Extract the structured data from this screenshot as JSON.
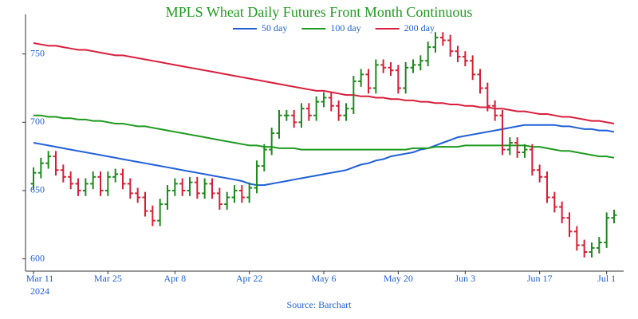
{
  "chart_data": {
    "type": "ohlc",
    "title": "MPLS Wheat Daily Futures Front Month Continuous",
    "source": "Source: Barchart",
    "x": [
      "2024-03-11",
      "2024-03-12",
      "2024-03-13",
      "2024-03-14",
      "2024-03-15",
      "2024-03-18",
      "2024-03-19",
      "2024-03-20",
      "2024-03-21",
      "2024-03-22",
      "2024-03-25",
      "2024-03-26",
      "2024-03-27",
      "2024-03-28",
      "2024-04-01",
      "2024-04-02",
      "2024-04-03",
      "2024-04-04",
      "2024-04-05",
      "2024-04-08",
      "2024-04-09",
      "2024-04-10",
      "2024-04-11",
      "2024-04-12",
      "2024-04-15",
      "2024-04-16",
      "2024-04-17",
      "2024-04-18",
      "2024-04-19",
      "2024-04-22",
      "2024-04-23",
      "2024-04-24",
      "2024-04-25",
      "2024-04-26",
      "2024-04-29",
      "2024-04-30",
      "2024-05-01",
      "2024-05-02",
      "2024-05-03",
      "2024-05-06",
      "2024-05-07",
      "2024-05-08",
      "2024-05-09",
      "2024-05-10",
      "2024-05-13",
      "2024-05-14",
      "2024-05-15",
      "2024-05-16",
      "2024-05-17",
      "2024-05-20",
      "2024-05-21",
      "2024-05-22",
      "2024-05-23",
      "2024-05-24",
      "2024-05-28",
      "2024-05-29",
      "2024-05-30",
      "2024-05-31",
      "2024-06-03",
      "2024-06-04",
      "2024-06-05",
      "2024-06-06",
      "2024-06-07",
      "2024-06-10",
      "2024-06-11",
      "2024-06-12",
      "2024-06-13",
      "2024-06-14",
      "2024-06-17",
      "2024-06-18",
      "2024-06-20",
      "2024-06-21",
      "2024-06-24",
      "2024-06-25",
      "2024-06-26",
      "2024-06-27",
      "2024-06-28",
      "2024-07-01",
      "2024-07-02"
    ],
    "ohlc": {
      "open": [
        655,
        663,
        670,
        675,
        665,
        660,
        655,
        650,
        655,
        660,
        650,
        660,
        662,
        655,
        648,
        645,
        635,
        628,
        640,
        650,
        655,
        650,
        656,
        648,
        655,
        648,
        640,
        645,
        650,
        645,
        652,
        668,
        680,
        692,
        705,
        705,
        700,
        710,
        705,
        715,
        718,
        712,
        705,
        710,
        730,
        735,
        725,
        742,
        740,
        738,
        725,
        740,
        742,
        745,
        755,
        762,
        760,
        752,
        748,
        745,
        735,
        725,
        712,
        705,
        680,
        685,
        678,
        680,
        665,
        660,
        645,
        638,
        630,
        620,
        610,
        605,
        608,
        612,
        630
      ],
      "high": [
        667,
        674,
        679,
        679,
        669,
        664,
        659,
        659,
        664,
        664,
        664,
        666,
        666,
        659,
        652,
        649,
        639,
        644,
        654,
        659,
        659,
        660,
        660,
        659,
        659,
        652,
        649,
        654,
        654,
        656,
        672,
        684,
        696,
        709,
        709,
        709,
        714,
        714,
        719,
        722,
        722,
        716,
        714,
        734,
        739,
        739,
        746,
        746,
        744,
        742,
        744,
        746,
        749,
        759,
        766,
        766,
        764,
        756,
        752,
        749,
        739,
        729,
        716,
        709,
        689,
        689,
        684,
        684,
        669,
        664,
        649,
        642,
        634,
        624,
        614,
        612,
        616,
        634,
        636
      ],
      "low": [
        651,
        659,
        666,
        661,
        656,
        651,
        646,
        646,
        651,
        646,
        646,
        656,
        651,
        644,
        641,
        631,
        624,
        624,
        636,
        646,
        646,
        646,
        644,
        644,
        644,
        636,
        636,
        641,
        641,
        641,
        648,
        664,
        676,
        688,
        701,
        696,
        696,
        701,
        701,
        711,
        708,
        701,
        701,
        706,
        726,
        721,
        721,
        736,
        734,
        721,
        721,
        736,
        738,
        741,
        751,
        756,
        748,
        744,
        741,
        731,
        721,
        708,
        701,
        676,
        676,
        674,
        674,
        661,
        656,
        641,
        634,
        626,
        616,
        606,
        601,
        601,
        604,
        608,
        626
      ],
      "close": [
        663,
        670,
        675,
        665,
        660,
        655,
        650,
        655,
        660,
        650,
        660,
        662,
        655,
        648,
        645,
        635,
        628,
        640,
        650,
        655,
        650,
        656,
        648,
        655,
        648,
        640,
        645,
        650,
        645,
        652,
        668,
        680,
        692,
        705,
        705,
        700,
        710,
        705,
        715,
        718,
        712,
        705,
        710,
        730,
        735,
        725,
        742,
        740,
        738,
        725,
        740,
        742,
        745,
        755,
        762,
        760,
        752,
        748,
        745,
        735,
        725,
        712,
        705,
        680,
        685,
        678,
        680,
        665,
        660,
        645,
        638,
        630,
        620,
        610,
        605,
        608,
        612,
        630,
        632
      ]
    },
    "up_color": "#1e8a1e",
    "down_color": "#d81e34",
    "series": [
      {
        "name": "50 day",
        "color": "#1f5fd6",
        "values": [
          685,
          684,
          683,
          682,
          681,
          680,
          679,
          678,
          677,
          676,
          675,
          674,
          673,
          672,
          671,
          670,
          669,
          668,
          667,
          666,
          665,
          664,
          663,
          662,
          661,
          660,
          659,
          658,
          657,
          655,
          654,
          654,
          655,
          656,
          657,
          658,
          659,
          660,
          661,
          662,
          663,
          664,
          665,
          667,
          669,
          670,
          672,
          673,
          675,
          676,
          677,
          678,
          680,
          681,
          683,
          685,
          687,
          689,
          690,
          691,
          692,
          693,
          694,
          695,
          696,
          697,
          698,
          698,
          698,
          698,
          698,
          697,
          697,
          696,
          695,
          695,
          694,
          694,
          693
        ]
      },
      {
        "name": "100 day",
        "color": "#1e9a1e",
        "values": [
          705,
          705,
          704,
          704,
          703,
          703,
          702,
          702,
          701,
          701,
          700,
          699,
          699,
          698,
          697,
          697,
          696,
          695,
          694,
          693,
          692,
          691,
          690,
          689,
          688,
          687,
          686,
          685,
          684,
          683,
          683,
          682,
          682,
          681,
          681,
          681,
          680,
          680,
          680,
          680,
          680,
          680,
          680,
          680,
          680,
          680,
          680,
          680,
          680,
          680,
          680,
          681,
          681,
          681,
          682,
          682,
          682,
          682,
          683,
          683,
          683,
          683,
          683,
          683,
          683,
          683,
          683,
          682,
          682,
          681,
          680,
          679,
          679,
          678,
          677,
          676,
          675,
          675,
          674
        ]
      },
      {
        "name": "200 day",
        "color": "#d81e3c",
        "values": [
          758,
          757,
          756,
          756,
          755,
          754,
          753,
          753,
          752,
          751,
          750,
          749,
          749,
          748,
          747,
          746,
          745,
          744,
          743,
          742,
          741,
          740,
          739,
          738,
          737,
          736,
          735,
          734,
          733,
          732,
          731,
          730,
          729,
          728,
          727,
          726,
          725,
          724,
          723,
          723,
          722,
          721,
          720,
          720,
          719,
          719,
          718,
          718,
          717,
          717,
          716,
          716,
          715,
          715,
          714,
          714,
          713,
          713,
          712,
          712,
          711,
          711,
          710,
          710,
          709,
          708,
          708,
          707,
          706,
          706,
          705,
          704,
          704,
          703,
          702,
          701,
          701,
          700,
          699
        ]
      }
    ],
    "xticks": [
      {
        "value": "2024-03-11",
        "label": [
          "Mar 11",
          "2024"
        ]
      },
      {
        "value": "2024-03-25",
        "label": "Mar 25"
      },
      {
        "value": "2024-04-08",
        "label": "Apr 8"
      },
      {
        "value": "2024-04-22",
        "label": "Apr 22"
      },
      {
        "value": "2024-05-06",
        "label": "May 6"
      },
      {
        "value": "2024-05-20",
        "label": "May 20"
      },
      {
        "value": "2024-06-03",
        "label": "Jun 3"
      },
      {
        "value": "2024-06-17",
        "label": "Jun 17"
      },
      {
        "value": "2024-07-01",
        "label": "Jul 1"
      }
    ],
    "ylim": [
      591,
      779
    ],
    "yticks": [
      600,
      650,
      700,
      750
    ],
    "grid": false
  }
}
